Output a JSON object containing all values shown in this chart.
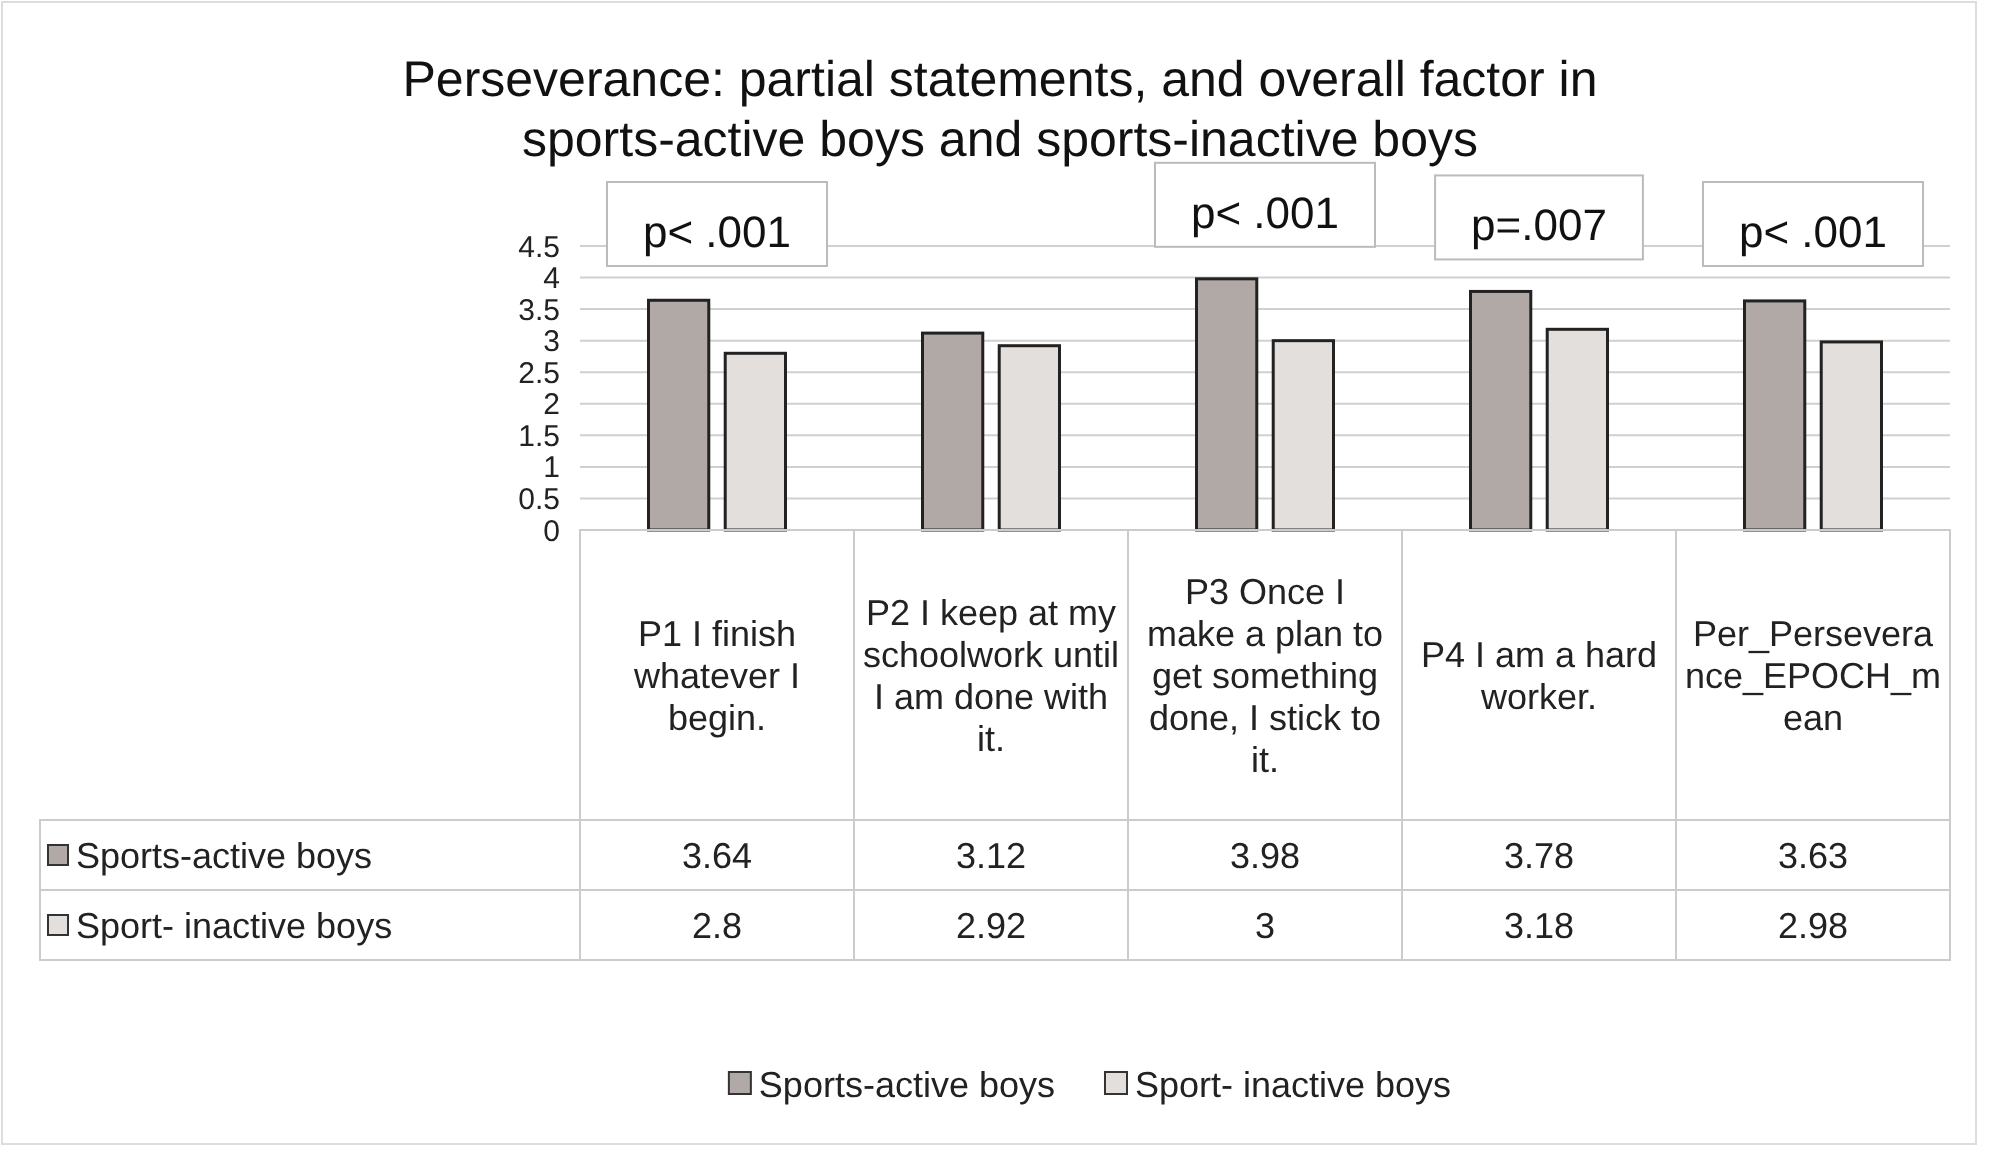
{
  "chart_data": {
    "type": "bar",
    "title": "Perseverance: partial statements, and overall factor in sports-active boys and sports-inactive boys",
    "categories": [
      "P1 I finish whatever I begin.",
      "P2 I keep at my schoolwork until I am done with it.",
      "P3 Once I make a plan to get something done, I stick to it.",
      "P4 I am a hard worker.",
      "Per_Perseverance_EPOCH_mean"
    ],
    "series": [
      {
        "name": "Sports-active boys",
        "color": "#b0a9a6",
        "values": [
          3.64,
          3.12,
          3.98,
          3.78,
          3.63
        ]
      },
      {
        "name": "Sport- inactive boys",
        "color": "#e3dfdc",
        "values": [
          2.8,
          2.92,
          3,
          3.18,
          2.98
        ]
      }
    ],
    "ylim": [
      0,
      4.5
    ],
    "yticks": [
      0,
      0.5,
      1,
      1.5,
      2,
      2.5,
      3,
      3.5,
      4,
      4.5
    ],
    "grid": "y",
    "legend": "bottom",
    "data_labels": true,
    "annotations": [
      {
        "text": "p< .001",
        "x": "P1 I finish whatever I begin.",
        "y": 3.64
      },
      {
        "text": "p< .001",
        "x": "P3 Once I make a plan to get something done, I stick to it.",
        "y": 3.98
      },
      {
        "text": "p=.007",
        "x": "P4 I am a hard worker.",
        "y": 3.78
      },
      {
        "text": "p< .001",
        "x": "Per_Perseverance_EPOCH_mean",
        "y": 3.63
      }
    ]
  }
}
